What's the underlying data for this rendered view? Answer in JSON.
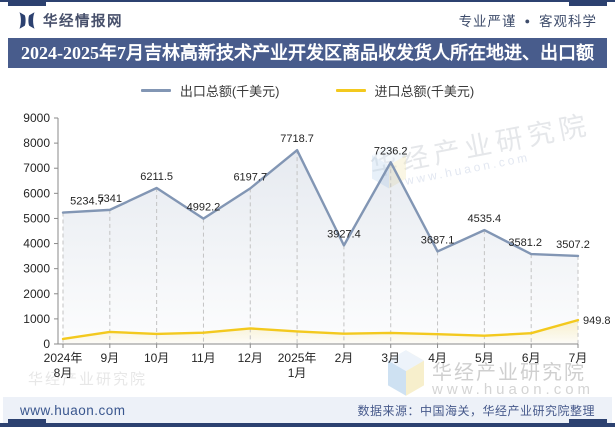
{
  "header": {
    "brand": "华经情报网",
    "tagline_left": "专业严谨",
    "tagline_bullet": "●",
    "tagline_right": "客观科学"
  },
  "title": "2024-2025年7月吉林高新技术产业开发区商品收发货人所在地进、出口额",
  "chart_data": {
    "type": "line",
    "title": "2024-2025年7月吉林高新技术产业开发区商品收发货人所在地进、出口额",
    "categories": [
      [
        "2024年",
        "8月"
      ],
      [
        "9月"
      ],
      [
        "10月"
      ],
      [
        "11月"
      ],
      [
        "12月"
      ],
      [
        "2025年",
        "1月"
      ],
      [
        "2月"
      ],
      [
        "3月"
      ],
      [
        "4月"
      ],
      [
        "5月"
      ],
      [
        "6月"
      ],
      [
        "7月"
      ]
    ],
    "ylim": [
      0,
      9000
    ],
    "ytick_step": 1000,
    "grid": false,
    "legend_position": "top",
    "series": [
      {
        "name": "出口总额(千美元)",
        "color": "#8296b4",
        "values": [
          5234.7,
          5341,
          6211.5,
          4992.2,
          6197.7,
          7718.7,
          3927.4,
          7236.2,
          3687.1,
          4535.4,
          3581.2,
          3507.2
        ],
        "labels": [
          "5234.7",
          "5341",
          "6211.5",
          "4992.2",
          "6197.7",
          "7718.7",
          "3927.4",
          "7236.2",
          "3687.1",
          "4535.4",
          "3581.2",
          "3507.2"
        ]
      },
      {
        "name": "进口总额(千美元)",
        "color": "#f3c91e",
        "values": [
          200,
          480,
          400,
          450,
          620,
          500,
          410,
          440,
          390,
          330,
          430,
          949.8
        ],
        "values_estimated": true,
        "labels": [
          "",
          "",
          "",
          "",
          "",
          "",
          "",
          "",
          "",
          "",
          "",
          "949.8"
        ]
      }
    ]
  },
  "watermarks": {
    "brand": "华经产业研究院",
    "site": "www.huaon.com"
  },
  "footer": {
    "site": "www.huaon.com",
    "source": "数据来源：中国海关，华经产业研究院整理"
  },
  "colors": {
    "accent_navy": "#2c4170",
    "title_bar_bg": "#485c8c",
    "export_line": "#8296b4",
    "import_line": "#f3c91e",
    "footer_bg": "#edf1f8"
  }
}
